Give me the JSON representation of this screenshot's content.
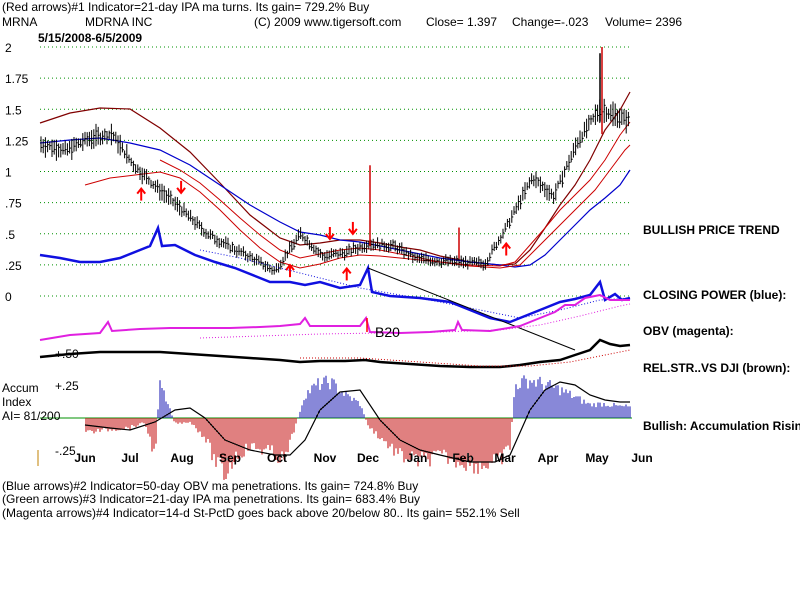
{
  "header": {
    "indicator1": "(Red arrows)#1 Indicator=21-day IPA ma turns. Its gain= 729.2% Buy",
    "symbol": "MRNA",
    "company": "MDRNA INC",
    "copyright": "(C) 2009 www.tigersoft.com",
    "close": "Close=  1.397",
    "change": "Change=-.023",
    "volume": "Volume= 2396",
    "date_range": "5/15/2008-6/5/2009"
  },
  "footer": {
    "line2": "(Blue arrows)#2 Indicator=50-day OBV ma penetrations. Its gain= 724.8% Buy",
    "line3": "(Green arrows)#3 Indicator=21-day IPA ma penetrations. Its gain= 683.4% Buy",
    "line4": "(Magenta arrows)#4 Indicator=14-d St-PctD goes back above 20/below 80.. Its gain= 552.1% Sell"
  },
  "labels": {
    "bullish_trend": "BULLISH PRICE TREND",
    "closing_power": "CLOSING POWER (blue):",
    "obv": "OBV (magenta):",
    "relstr": "REL.STR..VS DJI (brown):",
    "accum_title": [
      "Accum",
      "Index",
      "AI= 81/200"
    ],
    "accum_status": "Bullish: Accumulation Rising",
    "b20": "B20",
    "plus50": "+.50",
    "plus25": "+.25",
    "minus25": "-.25"
  },
  "colors": {
    "price_bars": "#000000",
    "closing_power": "#1010e0",
    "obv": "#e020e0",
    "relstr": "#000000",
    "ma_red": "#cc0000",
    "ma_darkred": "#800000",
    "ma_blue": "#0000cc",
    "accum_pos": "#1010b0",
    "accum_neg": "#c00000",
    "arrows": "#ff0000",
    "grid": "#009000"
  },
  "chart_data": {
    "type": "line",
    "title": "MRNA MDRNA INC",
    "y_ticks": [
      "2",
      "1.75",
      "1.5",
      "1.25",
      "1",
      ".75",
      ".5",
      ".25",
      "0"
    ],
    "y_tick_values": [
      2,
      1.75,
      1.5,
      1.25,
      1,
      0.75,
      0.5,
      0.25,
      0
    ],
    "ylim": [
      0,
      2
    ],
    "x_ticks": [
      "Jun",
      "Jul",
      "Aug",
      "Sep",
      "Oct",
      "Nov",
      "Dec",
      "Jan",
      "Feb",
      "Mar",
      "Apr",
      "May",
      "Jun"
    ],
    "grid": true,
    "series": [
      {
        "name": "Price",
        "x": [
          "2008-05-15",
          "2008-06-01",
          "2008-06-15",
          "2008-07-01",
          "2008-07-15",
          "2008-08-01",
          "2008-08-15",
          "2008-09-01",
          "2008-09-15",
          "2008-10-01",
          "2008-10-15",
          "2008-11-01",
          "2008-11-15",
          "2008-12-01",
          "2008-12-15",
          "2009-01-01",
          "2009-01-15",
          "2009-02-01",
          "2009-02-15",
          "2009-03-01",
          "2009-03-15",
          "2009-04-01",
          "2009-04-15",
          "2009-05-01",
          "2009-05-15",
          "2009-06-05"
        ],
        "values": [
          1.22,
          1.17,
          1.26,
          1.3,
          1.05,
          0.85,
          0.7,
          0.5,
          0.4,
          0.3,
          0.2,
          0.5,
          0.32,
          0.35,
          0.42,
          0.4,
          0.3,
          0.28,
          0.27,
          0.26,
          0.55,
          0.95,
          0.8,
          1.25,
          1.5,
          1.397
        ]
      },
      {
        "name": "Closing Power",
        "x": [
          "2008-05-15",
          "2008-06-15",
          "2008-07-15",
          "2008-08-01",
          "2008-08-15",
          "2008-09-15",
          "2008-10-15",
          "2008-11-15",
          "2008-12-01",
          "2008-12-15",
          "2009-01-15",
          "2009-02-15",
          "2009-03-15",
          "2009-04-15",
          "2009-05-15",
          "2009-06-05"
        ],
        "values": [
          0.34,
          0.25,
          0.4,
          0.55,
          0.38,
          0.27,
          0.05,
          0.02,
          0.2,
          -0.05,
          -0.1,
          -0.15,
          -0.18,
          -0.08,
          0.1,
          0.0
        ]
      }
    ],
    "arrows": [
      {
        "date": "2008-07-20",
        "dir": "up"
      },
      {
        "date": "2008-08-15",
        "dir": "down"
      },
      {
        "date": "2008-10-25",
        "dir": "up"
      },
      {
        "date": "2008-11-20",
        "dir": "down"
      },
      {
        "date": "2008-12-01",
        "dir": "up"
      },
      {
        "date": "2008-12-05",
        "dir": "down"
      },
      {
        "date": "2009-03-15",
        "dir": "up"
      }
    ]
  }
}
